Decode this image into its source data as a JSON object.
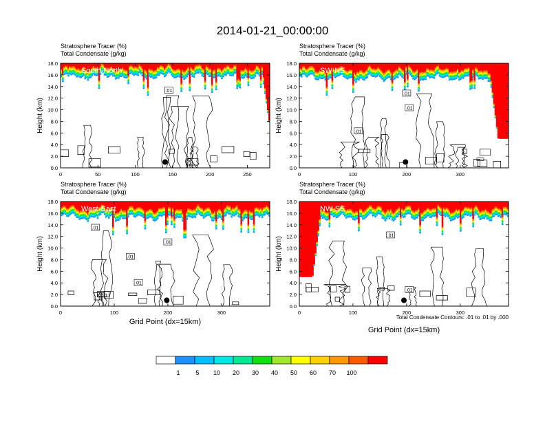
{
  "figure": {
    "title": "2014-01-21_00:00:00",
    "contour_note": "Total Condensate Contours: .01 to .01 by .000"
  },
  "chart_data": [
    {
      "type": "heatmap",
      "panel_label": "South-North",
      "subtitle_lines": [
        "Stratosphere Tracer   (%)",
        "Total Condensate   (g/kg)"
      ],
      "ylabel": "Height (km)",
      "xlabel": "",
      "xlim": [
        0,
        280
      ],
      "ylim": [
        0,
        18
      ],
      "xticks": [
        0,
        50,
        100,
        150,
        200,
        250
      ],
      "yticks": [
        "0.0",
        "2.0",
        "4.0",
        "6.0",
        "8.0",
        "10.0",
        "12.0",
        "14.0",
        "16.0",
        "18.0"
      ],
      "tracer_base_km": 15.8,
      "edge_intrusions": [
        {
          "side": "right",
          "x_start": 270,
          "y_min": 6,
          "y_max": 14
        }
      ],
      "contour_labels": [
        {
          "text": ".01",
          "x": 145,
          "y": 13.3
        }
      ],
      "marker": {
        "x": 140,
        "y": 1.0
      }
    },
    {
      "type": "heatmap",
      "panel_label": "SW-NE",
      "subtitle_lines": [
        "Stratosphere Tracer   (%)",
        "Total Condensate   (g/kg)"
      ],
      "ylabel": "Height (km)",
      "xlabel": "",
      "xlim": [
        0,
        390
      ],
      "ylim": [
        0,
        18
      ],
      "xticks": [
        0,
        100,
        200,
        300
      ],
      "yticks": [
        "0.0",
        "2.0",
        "4.0",
        "6.0",
        "8.0",
        "10.0",
        "12.0",
        "14.0",
        "16.0",
        "18.0"
      ],
      "tracer_base_km": 15.5,
      "edge_intrusions": [
        {
          "side": "right",
          "x_start": 355,
          "y_min": 5,
          "y_max": 15
        }
      ],
      "contour_labels": [
        {
          "text": ".01",
          "x": 200,
          "y": 12.8
        },
        {
          "text": ".01",
          "x": 205,
          "y": 10.3
        },
        {
          "text": ".01",
          "x": 110,
          "y": 6.3
        }
      ],
      "marker": {
        "x": 198,
        "y": 1.0
      }
    },
    {
      "type": "heatmap",
      "panel_label": "West-East",
      "subtitle_lines": [
        "Stratosphere Tracer   (%)",
        "Total Condensate   (g/kg)"
      ],
      "ylabel": "Height (km)",
      "xlabel": "Grid Point (dx=15km)",
      "xlim": [
        0,
        390
      ],
      "ylim": [
        0,
        18
      ],
      "xticks": [
        0,
        100,
        200,
        300
      ],
      "yticks": [
        "0.0",
        "2.0",
        "4.0",
        "6.0",
        "8.0",
        "10.0",
        "12.0",
        "14.0",
        "16.0",
        "18.0"
      ],
      "tracer_base_km": 15.3,
      "edge_intrusions": [],
      "contour_labels": [
        {
          "text": ".01",
          "x": 65,
          "y": 13.5
        },
        {
          "text": ".01",
          "x": 200,
          "y": 11.0
        },
        {
          "text": ".01",
          "x": 130,
          "y": 8.5
        },
        {
          "text": ".01",
          "x": 145,
          "y": 4.0
        }
      ],
      "marker": {
        "x": 198,
        "y": 1.0
      }
    },
    {
      "type": "heatmap",
      "panel_label": "NW-SE",
      "subtitle_lines": [
        "Stratosphere Tracer   (%)",
        "Total Condensate   (g/kg)"
      ],
      "ylabel": "Height (km)",
      "xlabel": "Grid Point (dx=15km)",
      "xlim": [
        0,
        390
      ],
      "ylim": [
        0,
        18
      ],
      "xticks": [
        0,
        100,
        200,
        300
      ],
      "yticks": [
        "0.0",
        "2.0",
        "4.0",
        "6.0",
        "8.0",
        "10.0",
        "12.0",
        "14.0",
        "16.0",
        "18.0"
      ],
      "tracer_base_km": 15.3,
      "edge_intrusions": [
        {
          "side": "left",
          "x_start": 40,
          "y_min": 5,
          "y_max": 16
        }
      ],
      "contour_labels": [
        {
          "text": ".01",
          "x": 170,
          "y": 12.2
        },
        {
          "text": ".01",
          "x": 205,
          "y": 2.8
        }
      ],
      "marker": {
        "x": 195,
        "y": 1.0
      }
    }
  ],
  "colorbar": {
    "labels": [
      "1",
      "5",
      "10",
      "20",
      "30",
      "40",
      "50",
      "60",
      "70",
      "100"
    ],
    "colors": [
      "#ffffff",
      "#1e90ff",
      "#00bfff",
      "#00e8e8",
      "#00e892",
      "#10e010",
      "#a0e830",
      "#ffff00",
      "#ffd000",
      "#ff9800",
      "#ff5a00",
      "#ff0000"
    ]
  }
}
